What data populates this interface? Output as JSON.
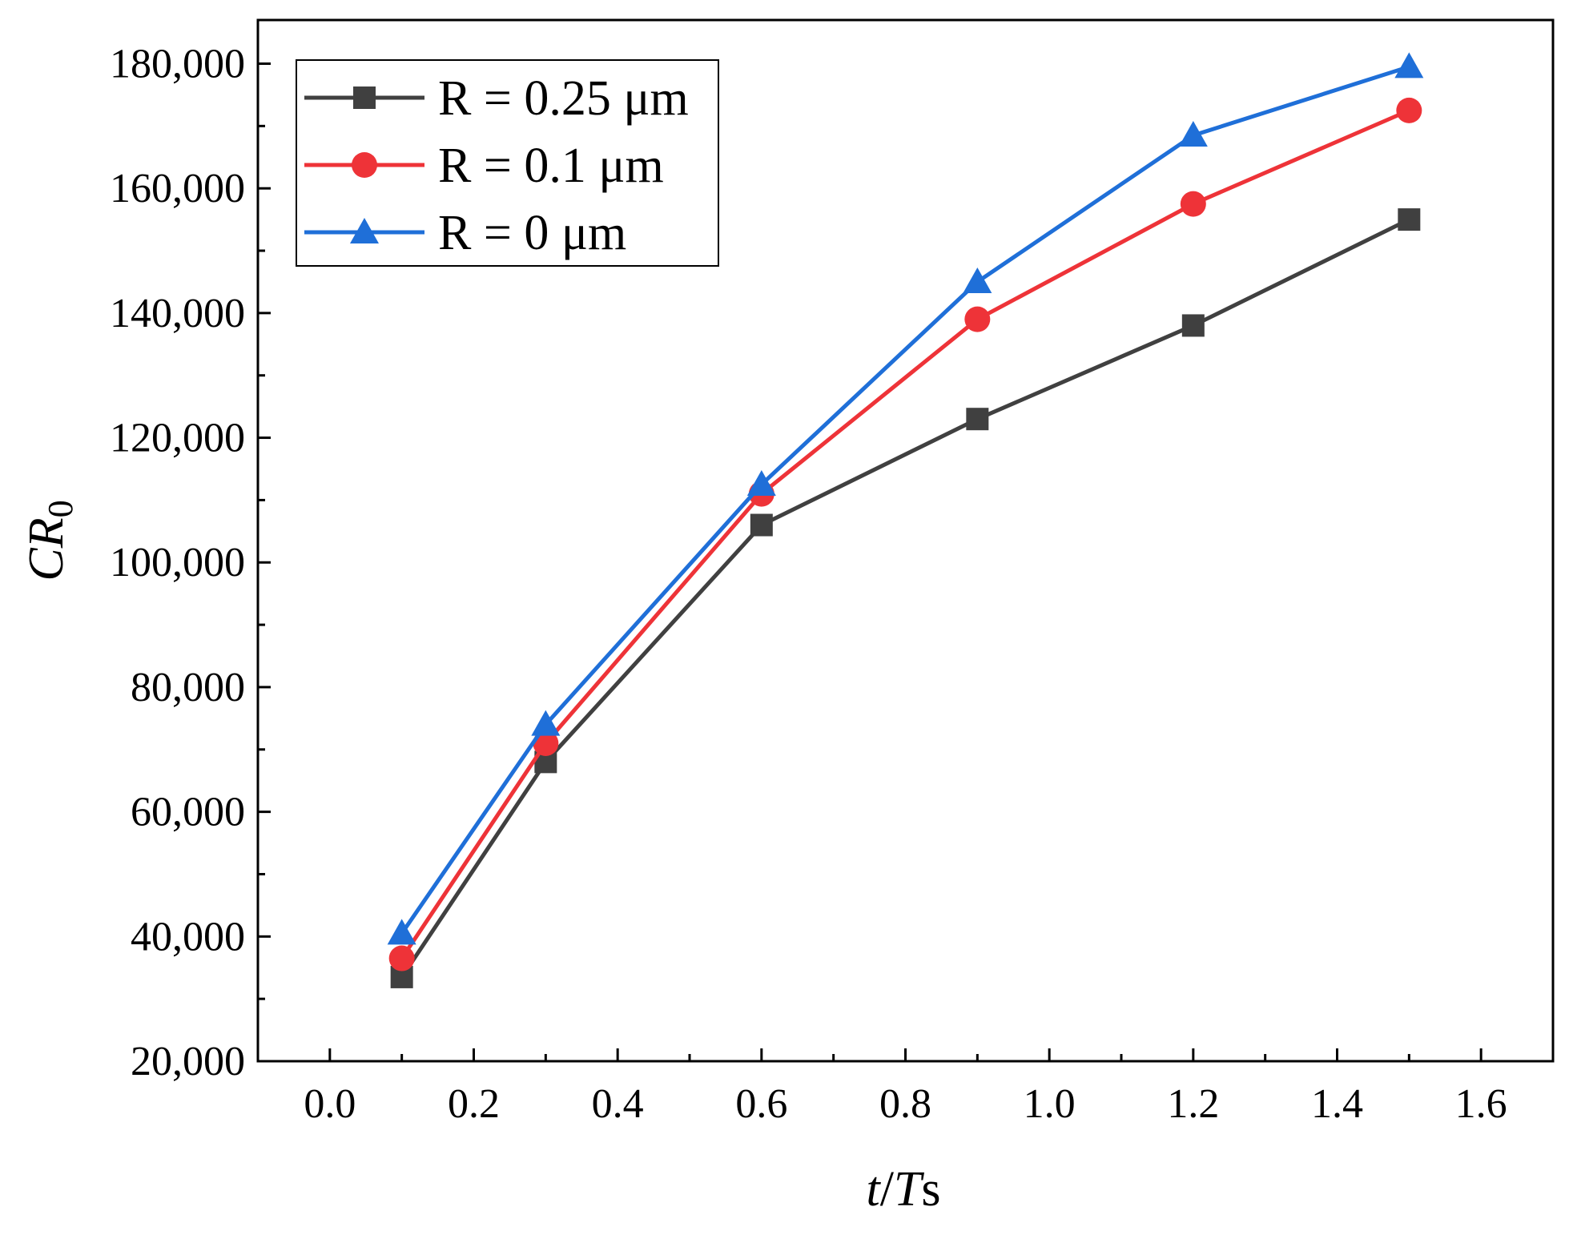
{
  "chart_data": {
    "type": "line",
    "title": "",
    "xlabel": "t/Ts",
    "xlabel_parts": {
      "italic_t": "t",
      "slash": "/",
      "italic_T": "T",
      "s": "s"
    },
    "ylabel": "CR0",
    "ylabel_parts": {
      "main": "CR",
      "sub": "0"
    },
    "xlim": [
      -0.1,
      1.7
    ],
    "ylim": [
      20000,
      187000
    ],
    "xticks": [
      0.0,
      0.2,
      0.4,
      0.6,
      0.8,
      1.0,
      1.2,
      1.4,
      1.6
    ],
    "xtick_labels": [
      "0.0",
      "0.2",
      "0.4",
      "0.6",
      "0.8",
      "1.0",
      "1.2",
      "1.4",
      "1.6"
    ],
    "yticks": [
      20000,
      40000,
      60000,
      80000,
      100000,
      120000,
      140000,
      160000,
      180000
    ],
    "ytick_labels": [
      "20,000",
      "40,000",
      "60,000",
      "80,000",
      "100,000",
      "120,000",
      "140,000",
      "160,000",
      "180,000"
    ],
    "grid": false,
    "legend_position": "top-left",
    "x": [
      0.1,
      0.3,
      0.6,
      0.9,
      1.2,
      1.5
    ],
    "series": [
      {
        "name": "R = 0.25 μm",
        "color": "#404040",
        "marker": "square",
        "values": [
          33500,
          68000,
          106000,
          123000,
          138000,
          155000
        ]
      },
      {
        "name": "R = 0.1 μm",
        "color": "#ee3338",
        "marker": "circle",
        "values": [
          36500,
          71000,
          111000,
          139000,
          157500,
          172500
        ]
      },
      {
        "name": "R = 0 μm",
        "color": "#1f6fd8",
        "marker": "triangle",
        "values": [
          40500,
          74000,
          112500,
          145000,
          168500,
          179500
        ]
      }
    ]
  }
}
